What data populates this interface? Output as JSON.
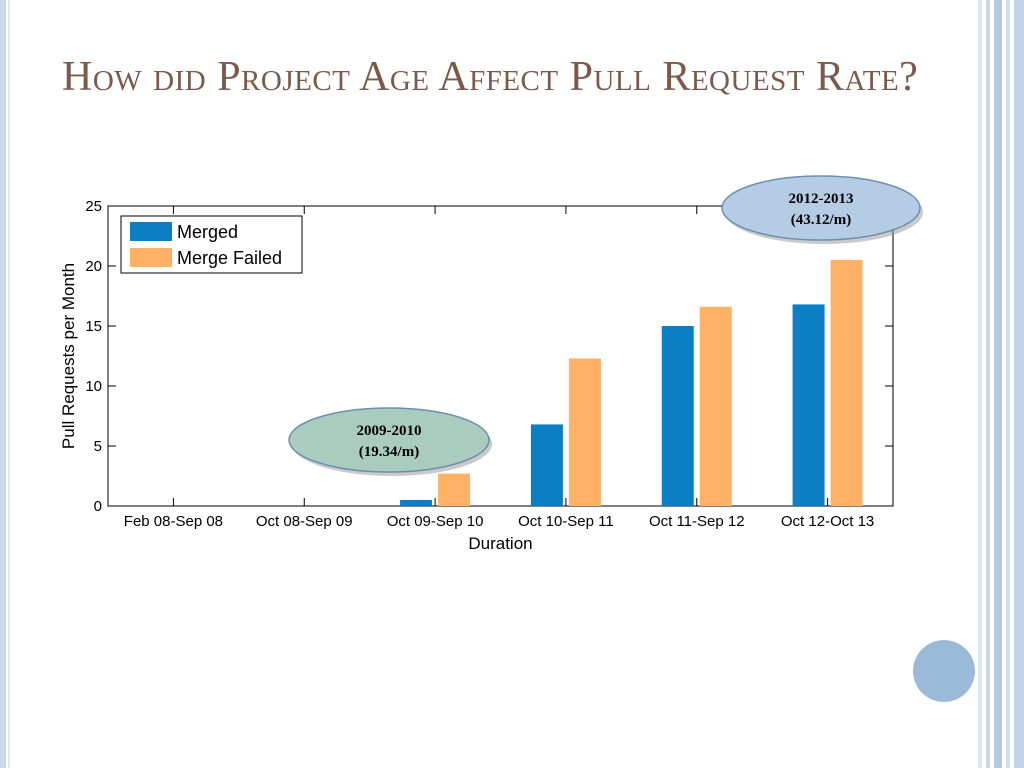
{
  "slide": {
    "title": "How did Project Age Affect Pull Request Rate?"
  },
  "chart_data": {
    "type": "bar",
    "title": "",
    "xlabel": "Duration",
    "ylabel": "Pull Requests per Month",
    "ylim": [
      0,
      25
    ],
    "yticks": [
      "0",
      "5",
      "10",
      "15",
      "20",
      "25"
    ],
    "categories": [
      "Feb 08-Sep 08",
      "Oct 08-Sep 09",
      "Oct 09-Sep 10",
      "Oct 10-Sep 11",
      "Oct 11-Sep 12",
      "Oct 12-Oct 13"
    ],
    "series": [
      {
        "name": "Merged",
        "color": "#0b7ec5",
        "values": [
          0,
          0,
          0.5,
          6.8,
          15.0,
          16.8
        ]
      },
      {
        "name": "Merge Failed",
        "color": "#ffb266",
        "values": [
          0,
          0,
          2.7,
          12.3,
          16.6,
          20.5
        ]
      }
    ],
    "legend": "top-left",
    "grid": false,
    "annotations": [
      {
        "line1": "2009-2010",
        "line2": "(19.34/m)",
        "fill": "#a9ccbf"
      },
      {
        "line1": "2012-2013",
        "line2": "(43.12/m)",
        "fill": "#b5cde4"
      }
    ]
  },
  "colors": {
    "title": "#7b5a4b",
    "accent": "#9bbad9"
  }
}
